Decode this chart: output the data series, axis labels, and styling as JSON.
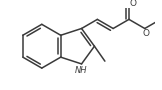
{
  "bg_color": "#ffffff",
  "line_color": "#3a3a3a",
  "line_width": 1.1,
  "figsize": [
    1.62,
    0.9
  ],
  "dpi": 100,
  "xlim": [
    0,
    162
  ],
  "ylim": [
    0,
    90
  ]
}
